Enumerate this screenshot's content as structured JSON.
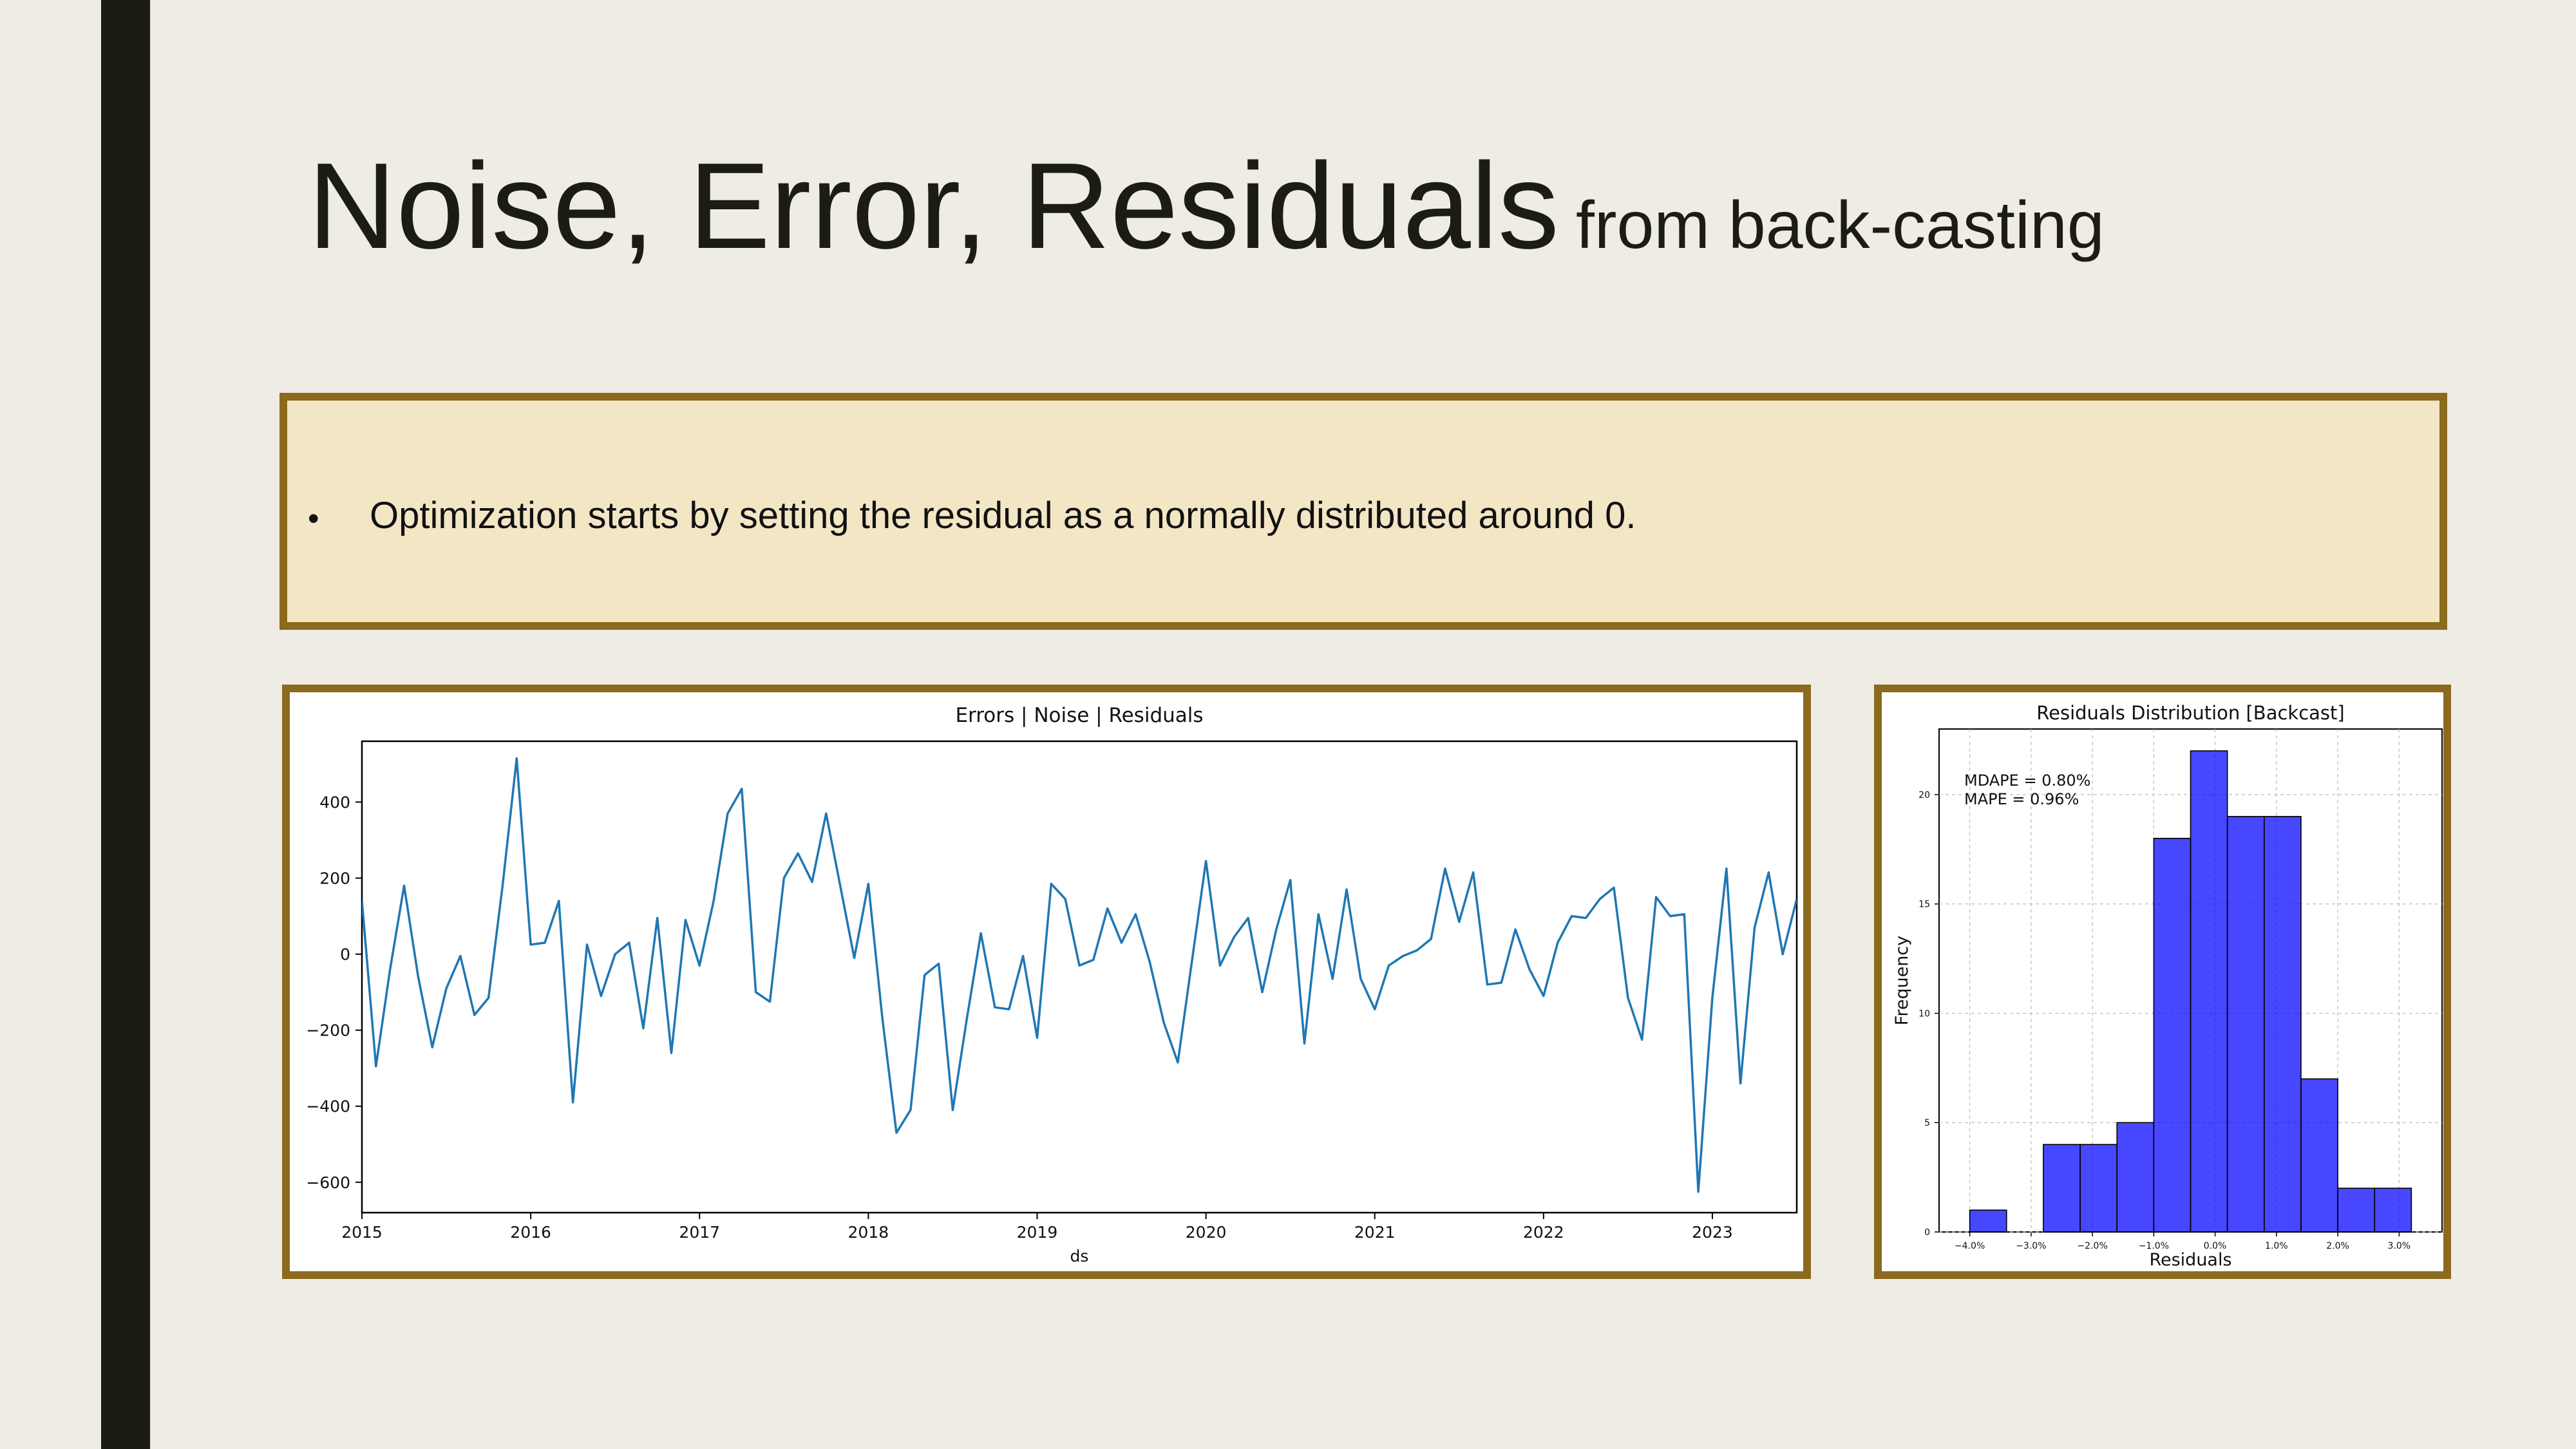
{
  "slide": {
    "title_main": "Noise, Error, Residuals",
    "title_sub": "from back-casting",
    "bullet": "Optimization starts by setting the residual as a normally distributed around 0."
  },
  "colors": {
    "frame": "#8B6A1E",
    "box_fill": "#F3E6C5",
    "line": "#1F77B4",
    "bars": "#0000FF",
    "sidebar": "#1C1D12"
  },
  "chart_data": [
    {
      "type": "line",
      "title": "Errors | Noise | Residuals",
      "xlabel": "ds",
      "ylabel": "",
      "xlim": [
        2015.0,
        2023.5
      ],
      "ylim": [
        -680,
        560
      ],
      "yticks": [
        400,
        200,
        0,
        -200,
        -400,
        -600
      ],
      "ytick_labels": [
        "400",
        "200",
        "0",
        "−200",
        "−400",
        "−600"
      ],
      "xticks": [
        2015,
        2016,
        2017,
        2018,
        2019,
        2020,
        2021,
        2022,
        2023
      ],
      "xtick_labels": [
        "2015",
        "2016",
        "2017",
        "2018",
        "2019",
        "2020",
        "2021",
        "2022",
        "2023"
      ],
      "grid": false,
      "x_start": 2015.0,
      "x_step_months": 1,
      "series": [
        {
          "values": [
            140,
            -295,
            -40,
            180,
            -60,
            -245,
            -90,
            -5,
            -160,
            -115,
            180,
            515,
            25,
            30,
            140,
            -390,
            25,
            -110,
            0,
            30,
            -195,
            95,
            -260,
            90,
            -30,
            140,
            370,
            435,
            -100,
            -125,
            200,
            265,
            190,
            370,
            180,
            -10,
            185,
            -170,
            -470,
            -410,
            -55,
            -25,
            -410,
            -170,
            55,
            -140,
            -145,
            -5,
            -220,
            185,
            145,
            -30,
            -15,
            120,
            30,
            105,
            -20,
            -180,
            -285,
            -20,
            245,
            -30,
            45,
            95,
            -100,
            65,
            195,
            -235,
            105,
            -65,
            170,
            -65,
            -145,
            -30,
            -5,
            10,
            40,
            225,
            85,
            215,
            -80,
            -75,
            65,
            -40,
            -110,
            30,
            100,
            95,
            145,
            175,
            -115,
            -225,
            150,
            100,
            105,
            -625,
            -115,
            225,
            -340,
            70,
            215,
            0,
            145
          ]
        }
      ]
    },
    {
      "type": "bar",
      "title": "Residuals Distribution [Backcast]",
      "xlabel": "Residuals",
      "ylabel": "Frequency",
      "xlim": [
        -4.5,
        3.7
      ],
      "ylim": [
        0,
        23
      ],
      "xticks": [
        -4,
        -3,
        -2,
        -1,
        0,
        1,
        2,
        3
      ],
      "xtick_labels": [
        "−4.0%",
        "−3.0%",
        "−2.0%",
        "−1.0%",
        "0.0%",
        "1.0%",
        "2.0%",
        "3.0%"
      ],
      "yticks": [
        0,
        5,
        10,
        15,
        20
      ],
      "ytick_labels": [
        "0",
        "5",
        "10",
        "15",
        "20"
      ],
      "grid": true,
      "bins": [
        {
          "from": -4.0,
          "to": -3.4,
          "count": 1
        },
        {
          "from": -3.4,
          "to": -2.8,
          "count": 0
        },
        {
          "from": -2.8,
          "to": -2.2,
          "count": 4
        },
        {
          "from": -2.2,
          "to": -1.6,
          "count": 4
        },
        {
          "from": -1.6,
          "to": -1.0,
          "count": 5
        },
        {
          "from": -1.0,
          "to": -0.4,
          "count": 18
        },
        {
          "from": -0.4,
          "to": 0.2,
          "count": 22
        },
        {
          "from": 0.2,
          "to": 0.8,
          "count": 19
        },
        {
          "from": 0.8,
          "to": 1.4,
          "count": 19
        },
        {
          "from": 1.4,
          "to": 2.0,
          "count": 7
        },
        {
          "from": 2.0,
          "to": 2.6,
          "count": 2
        },
        {
          "from": 2.6,
          "to": 3.2,
          "count": 2
        }
      ],
      "annotation_mdape": "MDAPE = 0.80%",
      "annotation_mape": "MAPE = 0.96%"
    }
  ]
}
